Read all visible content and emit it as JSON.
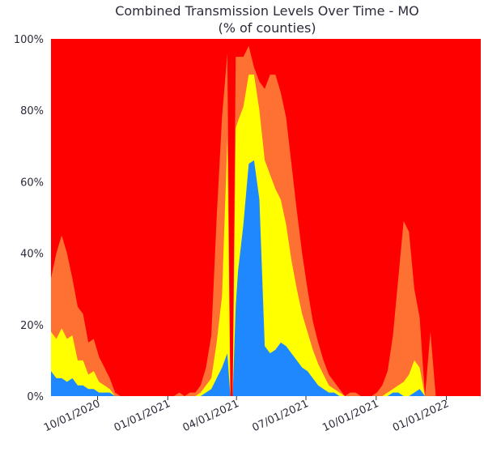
{
  "chart_data": {
    "type": "area",
    "stacked": true,
    "title": "Combined Transmission Levels Over Time - MO",
    "subtitle": "(% of counties)",
    "xlabel": "",
    "ylabel": "",
    "ylim": [
      0,
      100
    ],
    "xlim": [
      "2020-08-01",
      "2022-02-15"
    ],
    "y_ticks": [
      0,
      20,
      40,
      60,
      80,
      100
    ],
    "y_tick_labels": [
      "0%",
      "20%",
      "40%",
      "60%",
      "80%",
      "100%"
    ],
    "x_ticks": [
      "2020-10-01",
      "2021-01-01",
      "2021-04-01",
      "2021-07-01",
      "2021-10-01",
      "2022-01-01"
    ],
    "x_tick_labels": [
      "10/01/2020",
      "01/01/2021",
      "04/01/2021",
      "07/01/2021",
      "10/01/2021",
      "01/01/2022"
    ],
    "grid": false,
    "legend": "none",
    "x": [
      "2020-08-01",
      "2020-08-08",
      "2020-08-15",
      "2020-08-22",
      "2020-08-29",
      "2020-09-05",
      "2020-09-12",
      "2020-09-19",
      "2020-09-26",
      "2020-10-03",
      "2020-10-10",
      "2020-10-17",
      "2020-10-24",
      "2020-10-31",
      "2020-11-07",
      "2020-11-14",
      "2020-11-21",
      "2020-11-28",
      "2020-12-05",
      "2020-12-12",
      "2020-12-19",
      "2020-12-26",
      "2021-01-02",
      "2021-01-09",
      "2021-01-16",
      "2021-01-23",
      "2021-01-30",
      "2021-02-06",
      "2021-02-13",
      "2021-02-20",
      "2021-02-27",
      "2021-03-06",
      "2021-03-13",
      "2021-03-20",
      "2021-03-24",
      "2021-03-27",
      "2021-03-31",
      "2021-04-03",
      "2021-04-10",
      "2021-04-17",
      "2021-04-24",
      "2021-05-01",
      "2021-05-08",
      "2021-05-15",
      "2021-05-22",
      "2021-05-29",
      "2021-06-05",
      "2021-06-12",
      "2021-06-19",
      "2021-06-26",
      "2021-07-03",
      "2021-07-10",
      "2021-07-17",
      "2021-07-24",
      "2021-07-31",
      "2021-08-07",
      "2021-08-14",
      "2021-08-21",
      "2021-08-28",
      "2021-09-04",
      "2021-09-11",
      "2021-09-18",
      "2021-09-25",
      "2021-10-02",
      "2021-10-09",
      "2021-10-16",
      "2021-10-23",
      "2021-10-30",
      "2021-11-06",
      "2021-11-13",
      "2021-11-20",
      "2021-11-27",
      "2021-12-04",
      "2021-12-11",
      "2021-12-18",
      "2021-12-25",
      "2022-01-01",
      "2022-01-08",
      "2022-01-15",
      "2022-01-22",
      "2022-01-29",
      "2022-02-05",
      "2022-02-12"
    ],
    "series": [
      {
        "name": "",
        "color": "#1f88ff",
        "values": [
          7,
          5,
          5,
          4,
          5,
          3,
          3,
          2,
          2,
          1,
          1,
          1,
          0,
          0,
          0,
          0,
          0,
          0,
          0,
          0,
          0,
          0,
          0,
          0,
          0,
          0,
          0,
          0,
          0,
          1,
          2,
          5,
          8,
          12,
          0,
          0,
          25,
          35,
          48,
          65,
          66,
          55,
          14,
          12,
          13,
          15,
          14,
          12,
          10,
          8,
          7,
          5,
          3,
          2,
          1,
          1,
          0,
          0,
          0,
          0,
          0,
          0,
          0,
          0,
          0,
          0,
          1,
          1,
          0,
          0,
          1,
          2,
          0,
          0,
          0,
          0,
          0,
          0,
          0,
          0,
          0,
          0,
          0
        ]
      },
      {
        "name": "",
        "color": "#ffff00",
        "values": [
          11,
          11,
          14,
          12,
          12,
          7,
          7,
          4,
          5,
          3,
          2,
          1,
          0,
          0,
          0,
          0,
          0,
          0,
          0,
          0,
          0,
          0,
          0,
          0,
          0,
          0,
          0,
          0,
          1,
          2,
          3,
          10,
          20,
          60,
          0,
          0,
          50,
          42,
          33,
          25,
          24,
          25,
          52,
          50,
          45,
          40,
          34,
          26,
          20,
          15,
          11,
          8,
          6,
          4,
          2,
          1,
          1,
          0,
          0,
          0,
          0,
          0,
          0,
          0,
          0,
          1,
          1,
          2,
          4,
          6,
          9,
          6,
          0,
          0,
          0,
          0,
          0,
          0,
          0,
          0,
          0,
          0,
          0
        ]
      },
      {
        "name": "",
        "color": "#ff7033",
        "values": [
          15,
          24,
          26,
          24,
          16,
          15,
          13,
          9,
          9,
          7,
          5,
          3,
          1,
          0,
          0,
          0,
          0,
          0,
          0,
          0,
          0,
          0,
          0,
          0,
          1,
          0,
          1,
          1,
          2,
          5,
          12,
          35,
          50,
          24,
          0,
          0,
          20,
          18,
          14,
          8,
          2,
          8,
          20,
          28,
          32,
          30,
          30,
          27,
          22,
          17,
          12,
          8,
          6,
          4,
          3,
          2,
          1,
          0,
          1,
          1,
          0,
          0,
          0,
          1,
          3,
          6,
          15,
          30,
          45,
          40,
          20,
          14,
          0,
          18,
          0,
          0,
          0,
          0,
          0,
          0,
          0,
          0,
          0
        ]
      }
    ]
  }
}
